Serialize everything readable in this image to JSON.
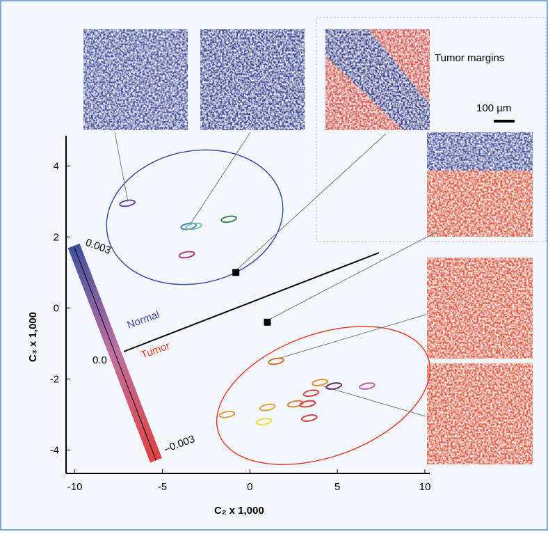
{
  "chart_data": {
    "type": "scatter",
    "x_label": "C₂ x 1,000",
    "y_label": "C₃ x 1,000",
    "xlim": [
      -10.5,
      10.2
    ],
    "ylim": [
      -4.66,
      4.85
    ],
    "xticks": [
      -10,
      -5,
      0,
      5,
      10
    ],
    "yticks": [
      -4,
      -2,
      0,
      2,
      4
    ],
    "x": [
      -7.0,
      -3.5,
      -3.2,
      -1.2,
      -3.6,
      1.5,
      4.0,
      4.8,
      6.7,
      2.6,
      3.5,
      3.3,
      1.0,
      -1.3,
      0.8,
      3.4
    ],
    "values": [
      2.95,
      2.3,
      2.3,
      2.5,
      1.5,
      -1.5,
      -2.1,
      -2.2,
      -2.2,
      -2.7,
      -2.4,
      -2.7,
      -2.8,
      -3.0,
      -3.2,
      -3.1
    ],
    "colors": [
      "#5a4fa0",
      "#4a7fc8",
      "#7cc0a0",
      "#3a8a50",
      "#b03a8a",
      "#d07030",
      "#e09030",
      "#6a3060",
      "#c060b0",
      "#e08040",
      "#d04040",
      "#d04040",
      "#e0a040",
      "#e0a040",
      "#e0e040",
      "#d04040"
    ],
    "markers": {
      "x": [
        -0.8,
        1.0
      ],
      "values": [
        1.0,
        -0.4
      ]
    },
    "labels": {
      "normal": "Normal",
      "tumor": "Tumor",
      "margins": "Tumor margins",
      "scale": "100 µm"
    },
    "colorbar_labels": [
      "0.003",
      "0.0",
      "–0.003"
    ]
  }
}
